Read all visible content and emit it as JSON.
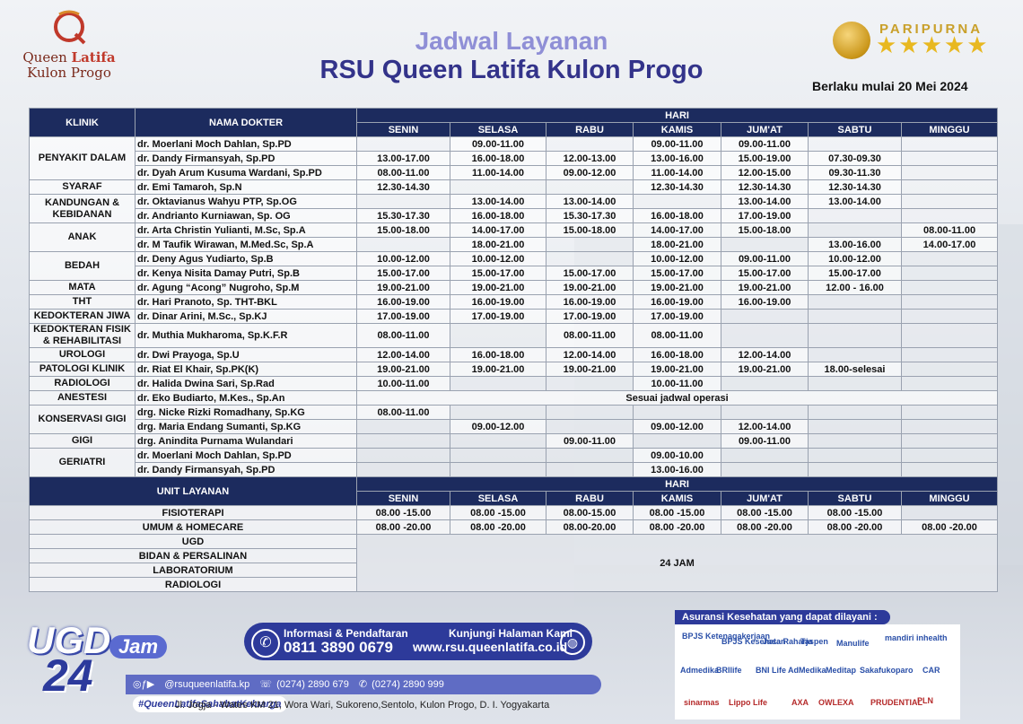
{
  "header": {
    "logo_line1": "Queen",
    "logo_line1b": "Latifa",
    "logo_line2": "Kulon Progo",
    "title": "Jadwal Layanan",
    "subtitle": "RSU Queen Latifa Kulon Progo",
    "badge": "PARIPURNA",
    "badge_stars": "★★★★★",
    "effective": "Berlaku mulai 20 Mei 2024"
  },
  "table": {
    "col_klinik": "KLINIK",
    "col_dokter": "NAMA DOKTER",
    "col_hari": "HARI",
    "days": [
      "SENIN",
      "SELASA",
      "RABU",
      "KAMIS",
      "JUM'AT",
      "SABTU",
      "MINGGU"
    ],
    "groups": [
      {
        "klinik": "PENYAKIT DALAM",
        "rows": [
          {
            "dokter": "dr. Moerlani Moch Dahlan, Sp.PD",
            "s": [
              "",
              "09.00-11.00",
              "",
              "09.00-11.00",
              "09.00-11.00",
              "",
              ""
            ]
          },
          {
            "dokter": "dr. Dandy Firmansyah, Sp.PD",
            "s": [
              "13.00-17.00",
              "16.00-18.00",
              "12.00-13.00",
              "13.00-16.00",
              "15.00-19.00",
              "07.30-09.30",
              ""
            ]
          },
          {
            "dokter": "dr. Dyah Arum Kusuma Wardani, Sp.PD",
            "s": [
              "08.00-11.00",
              "11.00-14.00",
              "09.00-12.00",
              "11.00-14.00",
              "12.00-15.00",
              "09.30-11.30",
              ""
            ]
          }
        ]
      },
      {
        "klinik": "SYARAF",
        "rows": [
          {
            "dokter": "dr. Emi Tamaroh, Sp.N",
            "s": [
              "12.30-14.30",
              "",
              "",
              "12.30-14.30",
              "12.30-14.30",
              "12.30-14.30",
              ""
            ]
          }
        ]
      },
      {
        "klinik": "KANDUNGAN & KEBIDANAN",
        "rows": [
          {
            "dokter": "dr. Oktavianus Wahyu PTP, Sp.OG",
            "s": [
              "",
              "13.00-14.00",
              "13.00-14.00",
              "",
              "13.00-14.00",
              "13.00-14.00",
              ""
            ]
          },
          {
            "dokter": "dr. Andrianto Kurniawan, Sp. OG",
            "s": [
              "15.30-17.30",
              "16.00-18.00",
              "15.30-17.30",
              "16.00-18.00",
              "17.00-19.00",
              "",
              ""
            ]
          }
        ]
      },
      {
        "klinik": "ANAK",
        "rows": [
          {
            "dokter": "dr. Arta Christin Yulianti, M.Sc, Sp.A",
            "s": [
              "15.00-18.00",
              "14.00-17.00",
              "15.00-18.00",
              "14.00-17.00",
              "15.00-18.00",
              "",
              "08.00-11.00"
            ]
          },
          {
            "dokter": "dr. M Taufik  Wirawan, M.Med.Sc, Sp.A",
            "s": [
              "",
              "18.00-21.00",
              "",
              "18.00-21.00",
              "",
              "13.00-16.00",
              "14.00-17.00"
            ]
          }
        ]
      },
      {
        "klinik": "BEDAH",
        "rows": [
          {
            "dokter": "dr. Deny Agus Yudiarto, Sp.B",
            "s": [
              "10.00-12.00",
              "10.00-12.00",
              "",
              "10.00-12.00",
              "09.00-11.00",
              "10.00-12.00",
              ""
            ]
          },
          {
            "dokter": "dr. Kenya Nisita Damay Putri, Sp.B",
            "s": [
              "15.00-17.00",
              "15.00-17.00",
              "15.00-17.00",
              "15.00-17.00",
              "15.00-17.00",
              "15.00-17.00",
              ""
            ]
          }
        ]
      },
      {
        "klinik": "MATA",
        "rows": [
          {
            "dokter": "dr. Agung “Acong” Nugroho, Sp.M",
            "s": [
              "19.00-21.00",
              "19.00-21.00",
              "19.00-21.00",
              "19.00-21.00",
              "19.00-21.00",
              "12.00 - 16.00",
              ""
            ]
          }
        ]
      },
      {
        "klinik": "THT",
        "rows": [
          {
            "dokter": "dr. Hari Pranoto, Sp. THT-BKL",
            "s": [
              "16.00-19.00",
              "16.00-19.00",
              "16.00-19.00",
              "16.00-19.00",
              "16.00-19.00",
              "",
              ""
            ]
          }
        ]
      },
      {
        "klinik": "KEDOKTERAN JIWA",
        "rows": [
          {
            "dokter": "dr. Dinar Arini, M.Sc., Sp.KJ",
            "s": [
              "17.00-19.00",
              "17.00-19.00",
              "17.00-19.00",
              "17.00-19.00",
              "",
              "",
              ""
            ]
          }
        ]
      },
      {
        "klinik": "KEDOKTERAN FISIK & REHABILITASI",
        "rows": [
          {
            "dokter": "dr. Muthia Mukharoma, Sp.K.F.R",
            "s": [
              "08.00-11.00",
              "",
              "08.00-11.00",
              "08.00-11.00",
              "",
              "",
              ""
            ]
          }
        ]
      },
      {
        "klinik": "UROLOGI",
        "rows": [
          {
            "dokter": "dr. Dwi Prayoga, Sp.U",
            "s": [
              "12.00-14.00",
              "16.00-18.00",
              "12.00-14.00",
              "16.00-18.00",
              "12.00-14.00",
              "",
              ""
            ]
          }
        ]
      },
      {
        "klinik": "PATOLOGI KLINIK",
        "rows": [
          {
            "dokter": "dr. Riat El Khair, Sp.PK(K)",
            "s": [
              "19.00-21.00",
              "19.00-21.00",
              "19.00-21.00",
              "19.00-21.00",
              "19.00-21.00",
              "18.00-selesai",
              ""
            ]
          }
        ]
      },
      {
        "klinik": "RADIOLOGI",
        "rows": [
          {
            "dokter": "dr. Halida Dwina Sari, Sp.Rad",
            "s": [
              "10.00-11.00",
              "",
              "",
              "10.00-11.00",
              "",
              "",
              ""
            ]
          }
        ]
      },
      {
        "klinik": "ANESTESI",
        "rows": [
          {
            "dokter": "dr. Eko Budiarto, M.Kes., Sp.An",
            "span": "Sesuai jadwal operasi"
          }
        ]
      },
      {
        "klinik": "KONSERVASI GIGI",
        "rows": [
          {
            "dokter": "drg. Nicke Rizki Romadhany, Sp.KG",
            "s": [
              "08.00-11.00",
              "",
              "",
              "",
              "",
              "",
              ""
            ]
          },
          {
            "dokter": "drg. Maria Endang Sumanti, Sp.KG",
            "s": [
              "",
              "09.00-12.00",
              "",
              "09.00-12.00",
              "12.00-14.00",
              "",
              ""
            ]
          }
        ]
      },
      {
        "klinik": "GIGI",
        "rows": [
          {
            "dokter": "drg. Anindita Purnama Wulandari",
            "s": [
              "",
              "",
              "09.00-11.00",
              "",
              "09.00-11.00",
              "",
              ""
            ]
          }
        ]
      },
      {
        "klinik": "GERIATRI",
        "rows": [
          {
            "dokter": "dr. Moerlani Moch Dahlan, Sp.PD",
            "s": [
              "",
              "",
              "",
              "09.00-10.00",
              "",
              "",
              ""
            ]
          },
          {
            "dokter": "dr. Dandy Firmansyah, Sp.PD",
            "s": [
              "",
              "",
              "",
              "13.00-16.00",
              "",
              "",
              ""
            ]
          }
        ]
      }
    ]
  },
  "units": {
    "col_unit": "UNIT LAYANAN",
    "col_hari": "HARI",
    "rows": [
      {
        "name": "FISIOTERAPI",
        "s": [
          "08.00 -15.00",
          "08.00 -15.00",
          "08.00-15.00",
          "08.00 -15.00",
          "08.00 -15.00",
          "08.00 -15.00",
          ""
        ]
      },
      {
        "name": "UMUM & HOMECARE",
        "s": [
          "08.00 -20.00",
          "08.00 -20.00",
          "08.00-20.00",
          "08.00 -20.00",
          "08.00 -20.00",
          "08.00 -20.00",
          "08.00 -20.00"
        ]
      }
    ],
    "allday": [
      "UGD",
      "BIDAN & PERSALINAN",
      "LABORATORIUM",
      "RADIOLOGI"
    ],
    "allday_label": "24 JAM"
  },
  "footer": {
    "ugd_word": "UGD",
    "ugd_num": "24",
    "ugd_jam": "Jam",
    "info_label": "Informasi & Pendaftaran",
    "phone": "0811 3890 0679",
    "visit_label": "Kunjungi Halaman Kami",
    "website": "www.rsu.queenlatifa.co.id",
    "social": "@rsuqueenlatifa.kp",
    "tel1": "(0274) 2890 679",
    "tel2": "(0274) 2890 999",
    "hashtag": "#QueenLatifaSahabatKeluarga",
    "address": "Jl. Jogja - Wates KM 21, Wora Wari, Sukoreno,Sentolo, Kulon Progo, D. I. Yogyakarta",
    "insurance_title": "Asuransi Kesehatan yang dapat dilayani :",
    "insurers": [
      "BPJS Ketenagakerjaan",
      "BPJS Kesehatan",
      "Jasa Raharja",
      "Taspen",
      "Manulife",
      "mandiri inhealth",
      "Admedika",
      "BRIlife",
      "BNI Life",
      "AdMedika",
      "Meditap",
      "Sakafukoparo",
      "CAR",
      "sinarmas",
      "Lippo Life",
      "AXA",
      "OWLEXA",
      "PRUDENTIAL",
      "PLN"
    ],
    "colors": {
      "navy": "#1c2b5e",
      "brand_blue": "#2d3a9a",
      "title_light": "#8f8fd6",
      "gold": "#c9a02a"
    }
  }
}
